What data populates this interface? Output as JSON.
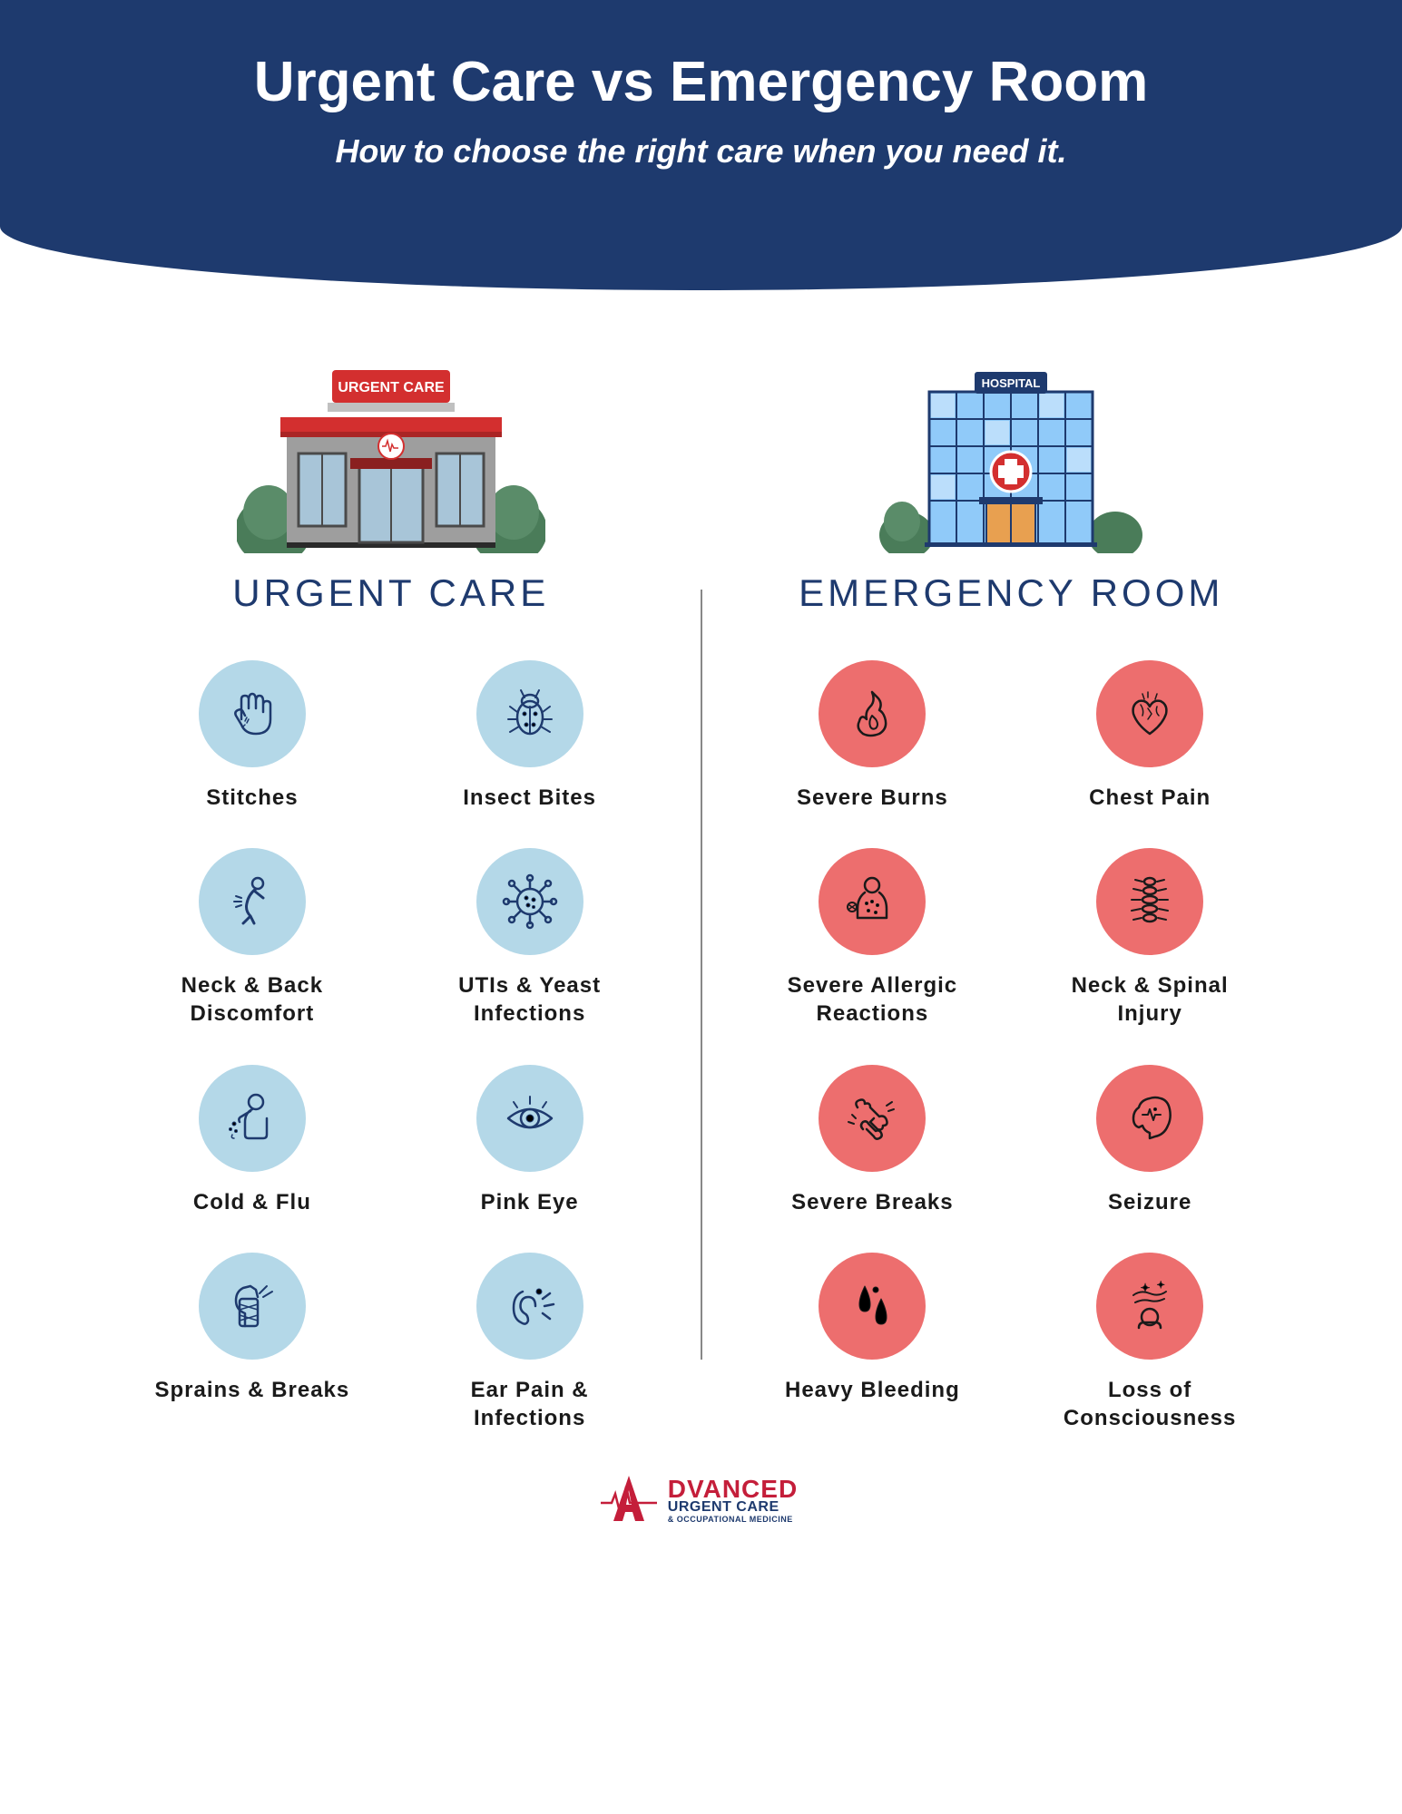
{
  "header": {
    "title": "Urgent Care vs Emergency Room",
    "subtitle": "How to choose the right care when you need it.",
    "bg_color": "#1e3a6e"
  },
  "urgent": {
    "title": "URGENT CARE",
    "sign": "URGENT CARE",
    "icon_bg": "#b4d8e8",
    "icon_stroke": "#1e3a6e",
    "items": [
      {
        "label": "Stitches",
        "icon": "hand"
      },
      {
        "label": "Insect Bites",
        "icon": "bug"
      },
      {
        "label": "Neck & Back Discomfort",
        "icon": "back"
      },
      {
        "label": "UTIs & Yeast Infections",
        "icon": "virus"
      },
      {
        "label": "Cold & Flu",
        "icon": "cough"
      },
      {
        "label": "Pink Eye",
        "icon": "eye"
      },
      {
        "label": "Sprains & Breaks",
        "icon": "bandage"
      },
      {
        "label": "Ear Pain & Infections",
        "icon": "ear"
      }
    ]
  },
  "er": {
    "title": "EMERGENCY ROOM",
    "sign": "HOSPITAL",
    "icon_bg": "#ed6e6e",
    "icon_stroke": "#1a1a1a",
    "items": [
      {
        "label": "Severe Burns",
        "icon": "fire"
      },
      {
        "label": "Chest Pain",
        "icon": "heart"
      },
      {
        "label": "Severe Allergic Reactions",
        "icon": "allergy"
      },
      {
        "label": "Neck & Spinal Injury",
        "icon": "spine"
      },
      {
        "label": "Severe Breaks",
        "icon": "bone"
      },
      {
        "label": "Seizure",
        "icon": "brain"
      },
      {
        "label": "Heavy Bleeding",
        "icon": "blood"
      },
      {
        "label": "Loss of Consciousness",
        "icon": "dizzy"
      }
    ]
  },
  "logo": {
    "main": "DVANCED",
    "sub": "URGENT CARE",
    "tiny": "& OCCUPATIONAL MEDICINE",
    "a_color": "#c41e3a",
    "line_color": "#c41e3a"
  },
  "building_colors": {
    "urgent_primary": "#d32f2f",
    "urgent_wall": "#9e9e9e",
    "urgent_window": "#a8c5d8",
    "hospital_wall": "#bbdefb",
    "hospital_window": "#90caf9",
    "hospital_sign": "#1e3a6e",
    "plant": "#4a7c59"
  }
}
